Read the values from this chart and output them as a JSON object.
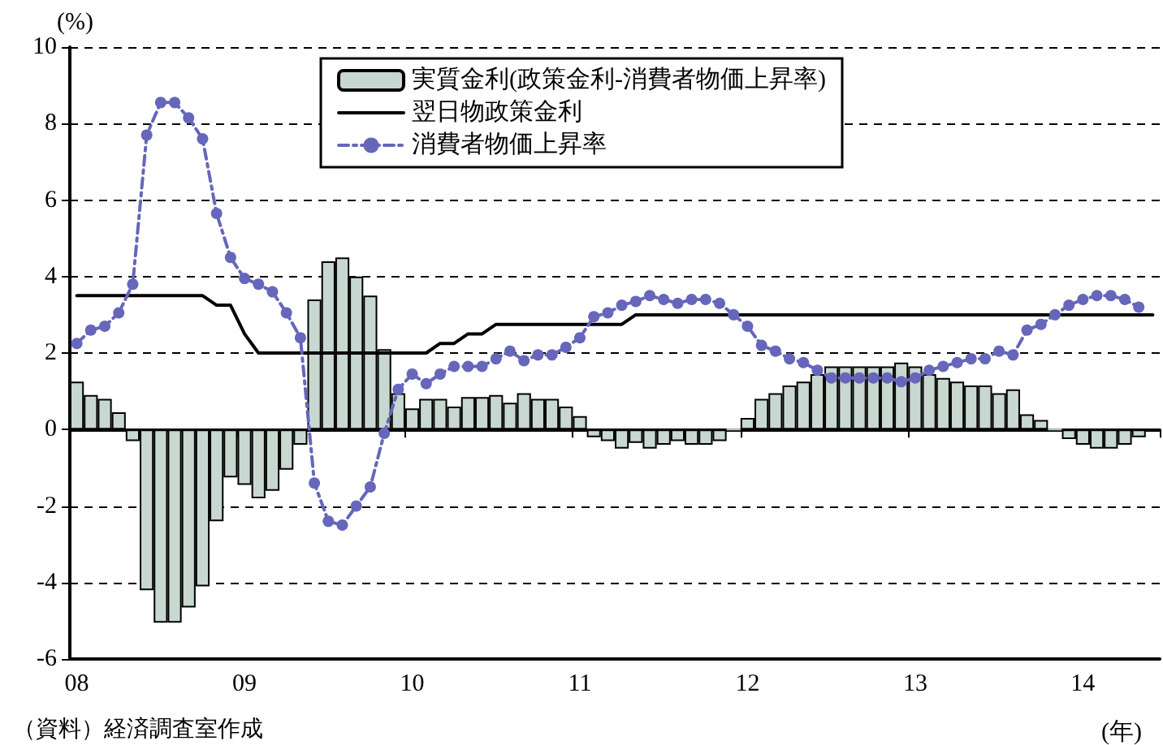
{
  "chart_data": {
    "type": "bar",
    "ylabel": "(%)",
    "xlabel": "(年)",
    "categories": [
      "08",
      null,
      null,
      null,
      null,
      null,
      null,
      null,
      null,
      null,
      null,
      null,
      "09",
      null,
      null,
      null,
      null,
      null,
      null,
      null,
      null,
      null,
      null,
      null,
      "10",
      null,
      null,
      null,
      null,
      null,
      null,
      null,
      null,
      null,
      null,
      null,
      "11",
      null,
      null,
      null,
      null,
      null,
      null,
      null,
      null,
      null,
      null,
      null,
      "12",
      null,
      null,
      null,
      null,
      null,
      null,
      null,
      null,
      null,
      null,
      null,
      "13",
      null,
      null,
      null,
      null,
      null,
      null,
      null,
      null,
      null,
      null,
      null,
      "14",
      null,
      null,
      null,
      null,
      null
    ],
    "series": [
      {
        "name": "実質金利(政策金利-消費者物価上昇率)",
        "color": "#c8d8d0",
        "values": [
          1.25,
          0.9,
          0.8,
          0.45,
          -0.3,
          -4.2,
          -5.05,
          -5.05,
          -4.65,
          -4.1,
          -2.4,
          -1.25,
          -1.45,
          -1.8,
          -1.6,
          -1.05,
          -0.4,
          3.4,
          4.4,
          4.5,
          4.0,
          3.5,
          2.1,
          0.95,
          0.55,
          0.8,
          0.8,
          0.6,
          0.85,
          0.85,
          0.9,
          0.7,
          0.95,
          0.8,
          0.8,
          0.6,
          0.35,
          -0.2,
          -0.3,
          -0.5,
          -0.35,
          -0.5,
          -0.4,
          -0.3,
          -0.4,
          -0.4,
          -0.3,
          0.0,
          0.3,
          0.8,
          0.95,
          1.15,
          1.25,
          1.45,
          1.65,
          1.65,
          1.65,
          1.65,
          1.65,
          1.75,
          1.65,
          1.45,
          1.35,
          1.25,
          1.15,
          1.15,
          0.95,
          1.05,
          0.4,
          0.25,
          0.0,
          -0.25,
          -0.4,
          -0.5,
          -0.5,
          -0.4,
          -0.2,
          null
        ]
      },
      {
        "name": "翌日物政策金利",
        "type": "line",
        "color": "#000000",
        "marker": "none",
        "line_style": "solid",
        "values": [
          3.5,
          3.5,
          3.5,
          3.5,
          3.5,
          3.5,
          3.5,
          3.5,
          3.5,
          3.5,
          3.25,
          3.25,
          2.5,
          2.0,
          2.0,
          2.0,
          2.0,
          2.0,
          2.0,
          2.0,
          2.0,
          2.0,
          2.0,
          2.0,
          2.0,
          2.0,
          2.25,
          2.25,
          2.5,
          2.5,
          2.75,
          2.75,
          2.75,
          2.75,
          2.75,
          2.75,
          2.75,
          2.75,
          2.75,
          2.75,
          3.0,
          3.0,
          3.0,
          3.0,
          3.0,
          3.0,
          3.0,
          3.0,
          3.0,
          3.0,
          3.0,
          3.0,
          3.0,
          3.0,
          3.0,
          3.0,
          3.0,
          3.0,
          3.0,
          3.0,
          3.0,
          3.0,
          3.0,
          3.0,
          3.0,
          3.0,
          3.0,
          3.0,
          3.0,
          3.0,
          3.0,
          3.0,
          3.0,
          3.0,
          3.0,
          3.0,
          3.0,
          3.0
        ]
      },
      {
        "name": "消費者物価上昇率",
        "type": "line",
        "color": "#6666bb",
        "marker": "circle",
        "line_style": "dashed",
        "values": [
          2.25,
          2.6,
          2.7,
          3.05,
          3.8,
          7.7,
          8.55,
          8.55,
          8.15,
          7.6,
          5.65,
          4.5,
          3.95,
          3.8,
          3.6,
          3.05,
          2.4,
          -1.4,
          -2.4,
          -2.5,
          -2.0,
          -1.5,
          -0.1,
          1.05,
          1.45,
          1.2,
          1.45,
          1.65,
          1.65,
          1.65,
          1.85,
          2.05,
          1.8,
          1.95,
          1.95,
          2.15,
          2.4,
          2.95,
          3.05,
          3.25,
          3.35,
          3.5,
          3.4,
          3.3,
          3.4,
          3.4,
          3.3,
          3.0,
          2.7,
          2.2,
          2.05,
          1.85,
          1.75,
          1.55,
          1.35,
          1.35,
          1.35,
          1.35,
          1.35,
          1.25,
          1.35,
          1.55,
          1.65,
          1.75,
          1.85,
          1.85,
          2.05,
          1.95,
          2.6,
          2.75,
          3.0,
          3.25,
          3.4,
          3.5,
          3.5,
          3.4,
          3.2,
          null
        ]
      }
    ],
    "ylim": [
      -6,
      10
    ],
    "yticks": [
      -6,
      -4,
      -2,
      0,
      2,
      4,
      6,
      8,
      10
    ],
    "grid": "y",
    "legend": "top",
    "annotations": [
      "（資料）経済調査室作成"
    ]
  }
}
